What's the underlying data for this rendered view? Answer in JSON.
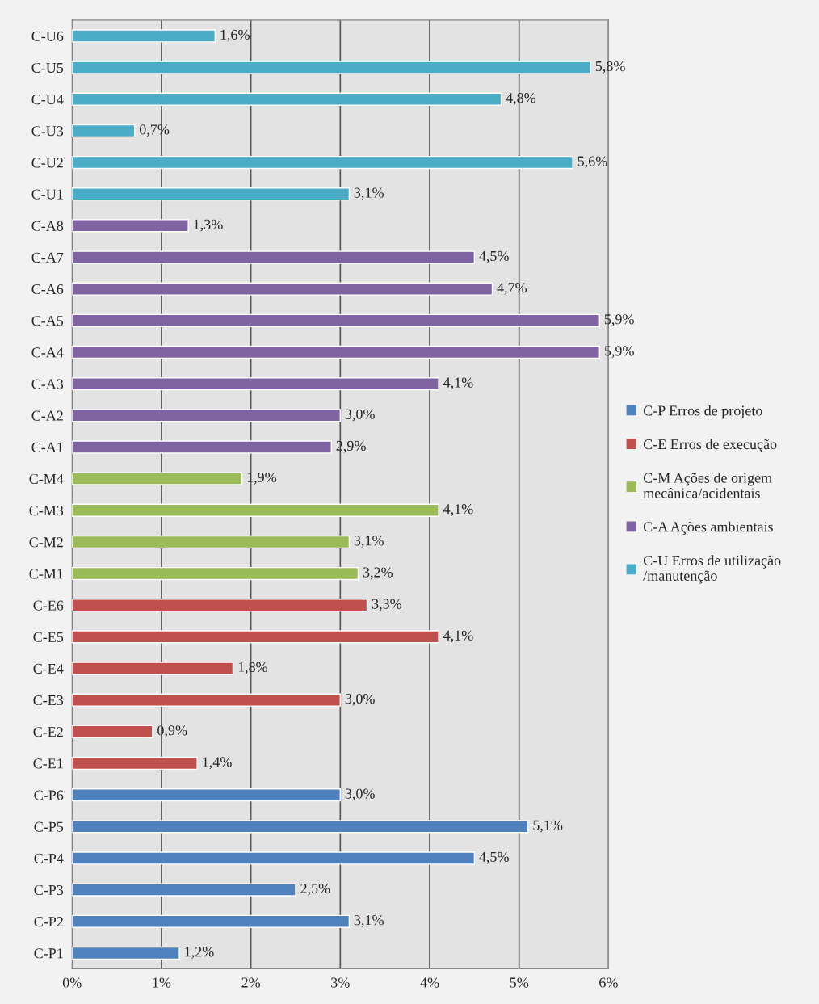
{
  "chart_data": {
    "type": "bar",
    "orientation": "horizontal",
    "categories": [
      "C-U6",
      "C-U5",
      "C-U4",
      "C-U3",
      "C-U2",
      "C-U1",
      "C-A8",
      "C-A7",
      "C-A6",
      "C-A5",
      "C-A4",
      "C-A3",
      "C-A2",
      "C-A1",
      "C-M4",
      "C-M3",
      "C-M2",
      "C-M1",
      "C-E6",
      "C-E5",
      "C-E4",
      "C-E3",
      "C-E2",
      "C-E1",
      "C-P6",
      "C-P5",
      "C-P4",
      "C-P3",
      "C-P2",
      "C-P1"
    ],
    "series": [
      {
        "name": "C-P Erros de projeto",
        "color": "#4f81bd",
        "values": [
          null,
          null,
          null,
          null,
          null,
          null,
          null,
          null,
          null,
          null,
          null,
          null,
          null,
          null,
          null,
          null,
          null,
          null,
          null,
          null,
          null,
          null,
          null,
          null,
          3.0,
          5.1,
          4.5,
          2.5,
          3.1,
          1.2
        ],
        "value_labels": [
          null,
          null,
          null,
          null,
          null,
          null,
          null,
          null,
          null,
          null,
          null,
          null,
          null,
          null,
          null,
          null,
          null,
          null,
          null,
          null,
          null,
          null,
          null,
          null,
          "3,0%",
          "5,1%",
          "4,5%",
          "2,5%",
          "3,1%",
          "1,2%"
        ]
      },
      {
        "name": "C-E Erros de execução",
        "color": "#c0504d",
        "values": [
          null,
          null,
          null,
          null,
          null,
          null,
          null,
          null,
          null,
          null,
          null,
          null,
          null,
          null,
          null,
          null,
          null,
          null,
          3.3,
          4.1,
          1.8,
          3.0,
          0.9,
          1.4,
          null,
          null,
          null,
          null,
          null,
          null
        ],
        "value_labels": [
          null,
          null,
          null,
          null,
          null,
          null,
          null,
          null,
          null,
          null,
          null,
          null,
          null,
          null,
          null,
          null,
          null,
          null,
          "3,3%",
          "4,1%",
          "1,8%",
          "3,0%",
          "0,9%",
          "1,4%",
          null,
          null,
          null,
          null,
          null,
          null
        ]
      },
      {
        "name": "C-M Ações de origem\nmecânica/acidentais",
        "color": "#9bbb59",
        "values": [
          null,
          null,
          null,
          null,
          null,
          null,
          null,
          null,
          null,
          null,
          null,
          null,
          null,
          null,
          1.9,
          4.1,
          3.1,
          3.2,
          null,
          null,
          null,
          null,
          null,
          null,
          null,
          null,
          null,
          null,
          null,
          null
        ],
        "value_labels": [
          null,
          null,
          null,
          null,
          null,
          null,
          null,
          null,
          null,
          null,
          null,
          null,
          null,
          null,
          "1,9%",
          "4,1%",
          "3,1%",
          "3,2%",
          null,
          null,
          null,
          null,
          null,
          null,
          null,
          null,
          null,
          null,
          null,
          null
        ]
      },
      {
        "name": "C-A Ações ambientais",
        "color": "#8064a2",
        "values": [
          null,
          null,
          null,
          null,
          null,
          null,
          1.3,
          4.5,
          4.7,
          5.9,
          5.9,
          4.1,
          3.0,
          2.9,
          null,
          null,
          null,
          null,
          null,
          null,
          null,
          null,
          null,
          null,
          null,
          null,
          null,
          null,
          null,
          null
        ],
        "value_labels": [
          null,
          null,
          null,
          null,
          null,
          null,
          "1,3%",
          "4,5%",
          "4,7%",
          "5,9%",
          "5,9%",
          "4,1%",
          "3,0%",
          "2,9%",
          null,
          null,
          null,
          null,
          null,
          null,
          null,
          null,
          null,
          null,
          null,
          null,
          null,
          null,
          null,
          null
        ]
      },
      {
        "name": "C-U Erros de utilização\n/manutenção",
        "color": "#4bacc6",
        "values": [
          1.6,
          5.8,
          4.8,
          0.7,
          5.6,
          3.1,
          null,
          null,
          null,
          null,
          null,
          null,
          null,
          null,
          null,
          null,
          null,
          null,
          null,
          null,
          null,
          null,
          null,
          null,
          null,
          null,
          null,
          null,
          null,
          null
        ],
        "value_labels": [
          "1,6%",
          "5,8%",
          "4,8%",
          "0,7%",
          "5,6%",
          "3,1%",
          null,
          null,
          null,
          null,
          null,
          null,
          null,
          null,
          null,
          null,
          null,
          null,
          null,
          null,
          null,
          null,
          null,
          null,
          null,
          null,
          null,
          null,
          null,
          null
        ]
      }
    ],
    "xlim": [
      0,
      6
    ],
    "xticks": [
      {
        "value": 0,
        "label": "0%"
      },
      {
        "value": 1,
        "label": "1%"
      },
      {
        "value": 2,
        "label": "2%"
      },
      {
        "value": 3,
        "label": "3%"
      },
      {
        "value": 4,
        "label": "4%"
      },
      {
        "value": 5,
        "label": "5%"
      },
      {
        "value": 6,
        "label": "6%"
      }
    ],
    "grid": "x",
    "legend": "right"
  }
}
